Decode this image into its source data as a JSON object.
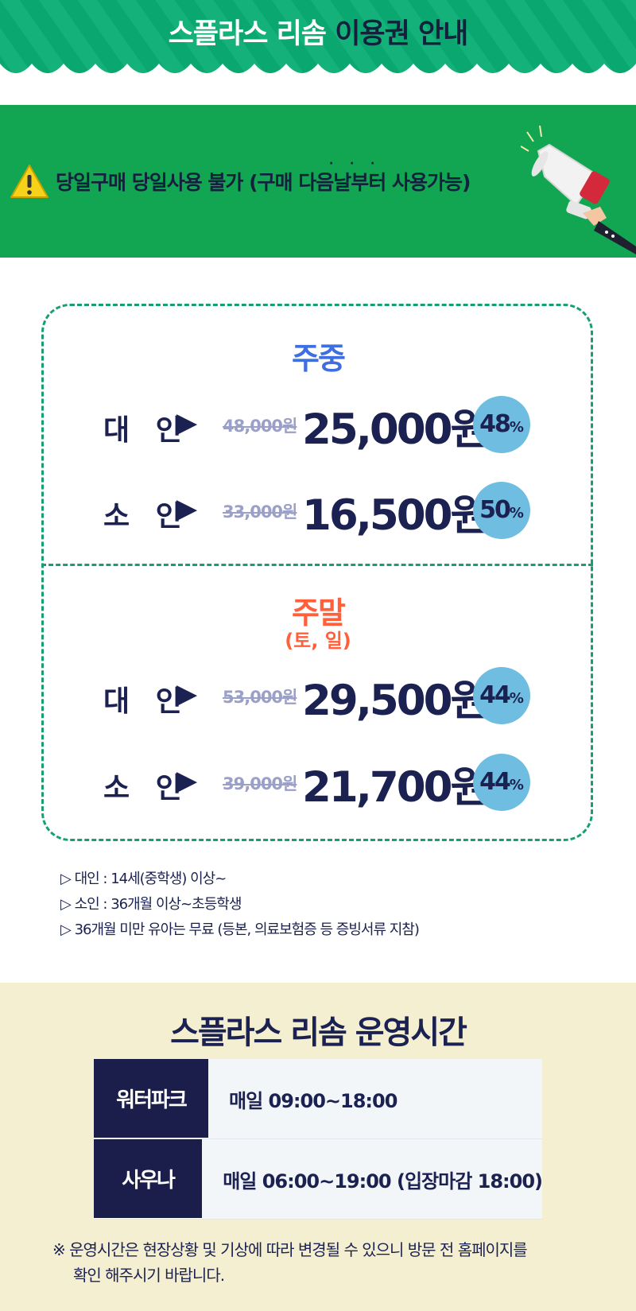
{
  "header": {
    "title_light": "스플라스 리솜",
    "title_dark": "이용권 안내"
  },
  "notice": {
    "text": "당일구매 당일사용 불가 (구매 다음날부터 사용가능)"
  },
  "weekday": {
    "title": "주중",
    "rows": [
      {
        "label": "대 인",
        "original": "48,000원",
        "price": "25,000원",
        "discount": "48",
        "unit": "%"
      },
      {
        "label": "소 인",
        "original": "33,000원",
        "price": "16,500원",
        "discount": "50",
        "unit": "%"
      }
    ]
  },
  "weekend": {
    "title": "주말",
    "subtitle": "(토, 일)",
    "rows": [
      {
        "label": "대 인",
        "original": "53,000원",
        "price": "29,500원",
        "discount": "44",
        "unit": "%"
      },
      {
        "label": "소 인",
        "original": "39,000원",
        "price": "21,700원",
        "discount": "44",
        "unit": "%"
      }
    ]
  },
  "arrow": "▶",
  "notes": [
    "▷  대인 : 14세(중학생) 이상~",
    "▷  소인 :  36개월 이상~초등학생",
    "▷ 36개월 미만 유아는 무료 (등본, 의료보험증 등 증빙서류 지참)"
  ],
  "hours": {
    "title": "스플라스 리솜 운영시간",
    "rows": [
      {
        "key": "워터파크",
        "value": "매일 09:00~18:00"
      },
      {
        "key": "사우나",
        "value": "매일 06:00~19:00 (입장마감 18:00)"
      }
    ],
    "note_line1": "※ 운영시간은 현장상황 및 기상에 따라 변경될 수 있으니 방문 전 홈페이지를",
    "note_line2": "확인 해주시기 바랍니다."
  },
  "colors": {
    "header_green": "#0aa870",
    "notice_green": "#12a552",
    "weekday_blue": "#3f6ee0",
    "weekend_orange": "#ff5f3a",
    "navy": "#1b2150",
    "discount_circle": "#6fbde0",
    "hours_bg": "#f4efd1"
  }
}
